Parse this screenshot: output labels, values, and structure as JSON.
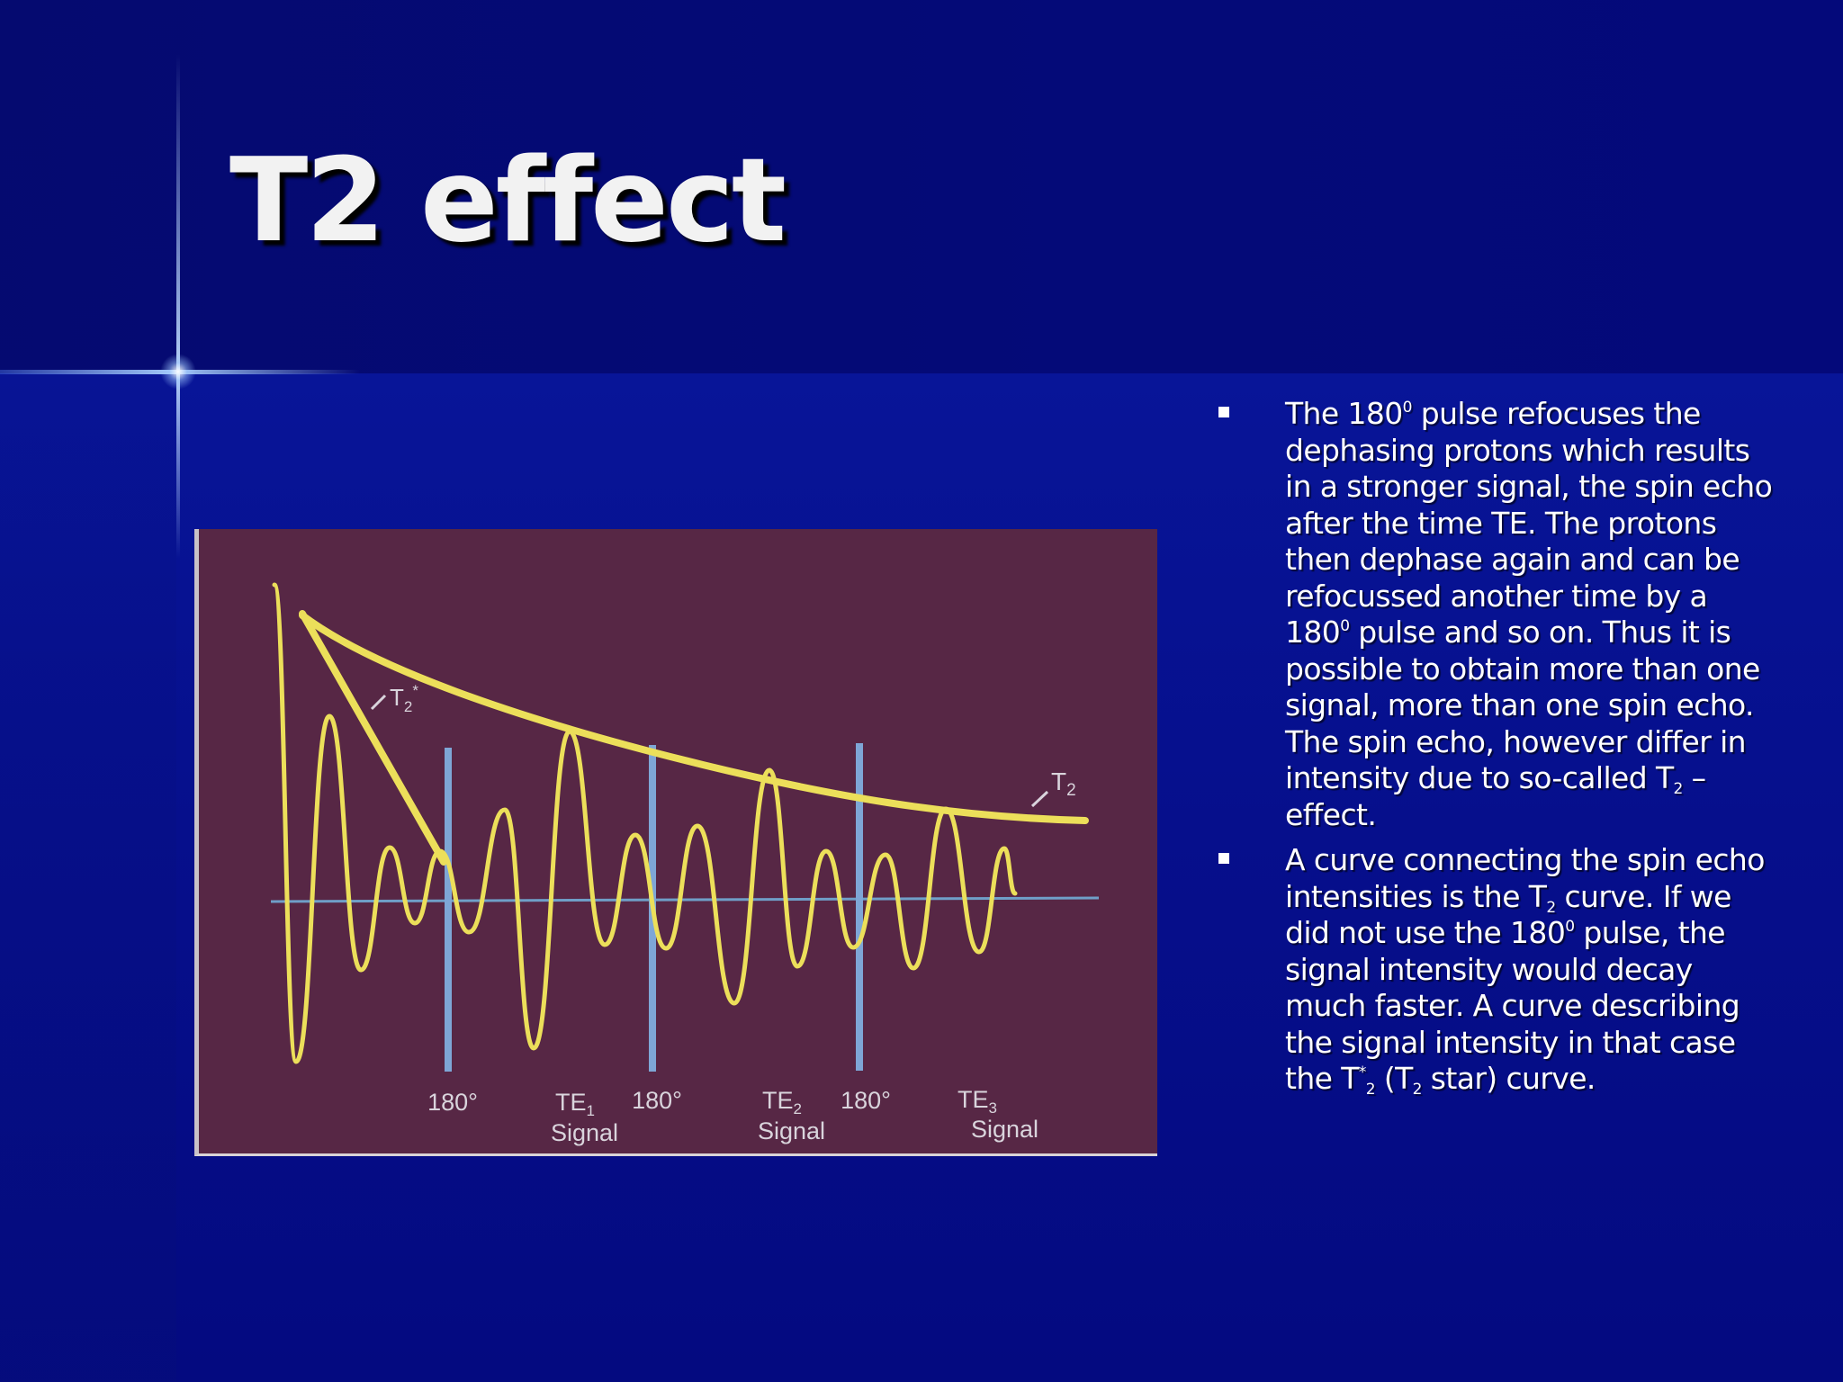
{
  "title": "T2 effect",
  "diagram": {
    "labels": {
      "t2star": "T",
      "t2star_sub": "2",
      "t2star_sup": "*",
      "t2": "T",
      "t2_sub": "2",
      "pulses": [
        "180°",
        "180°",
        "180°"
      ],
      "echoes": [
        {
          "te": "TE",
          "sub": "1",
          "signal": "Signal"
        },
        {
          "te": "TE",
          "sub": "2",
          "signal": "Signal"
        },
        {
          "te": "TE",
          "sub": "3",
          "signal": "Signal"
        }
      ]
    },
    "colors": {
      "background": "#572745",
      "signal": "#ecdf5a",
      "pulse_line": "#7ea6d6",
      "baseline": "#6f9fc8",
      "label": "#d9d4dc"
    }
  },
  "bullets": [
    {
      "segments": [
        {
          "text": "The 180"
        },
        {
          "sup": "0"
        },
        {
          "text": " pulse refocuses the dephasing protons which results in a stronger signal, the spin echo after the time TE. The protons then dephase again and can be refocussed another time by a 180"
        },
        {
          "sup": "0"
        },
        {
          "text": " pulse and so on. Thus it is possible to obtain more than one signal, more than one spin echo. The spin echo, however differ in intensity due to so-called T"
        },
        {
          "sub": "2"
        },
        {
          "text": " – effect."
        }
      ]
    },
    {
      "segments": [
        {
          "text": "A curve connecting the spin echo intensities is the T"
        },
        {
          "sub": "2"
        },
        {
          "text": " curve. If we did not use the 180"
        },
        {
          "sup": "0"
        },
        {
          "text": " pulse, the signal intensity would decay much faster. A curve describing the signal intensity in that case the T"
        },
        {
          "sup": "*"
        },
        {
          "sub": "2"
        },
        {
          "text": " (T"
        },
        {
          "sub": "2"
        },
        {
          "text": " star) curve."
        }
      ]
    }
  ]
}
